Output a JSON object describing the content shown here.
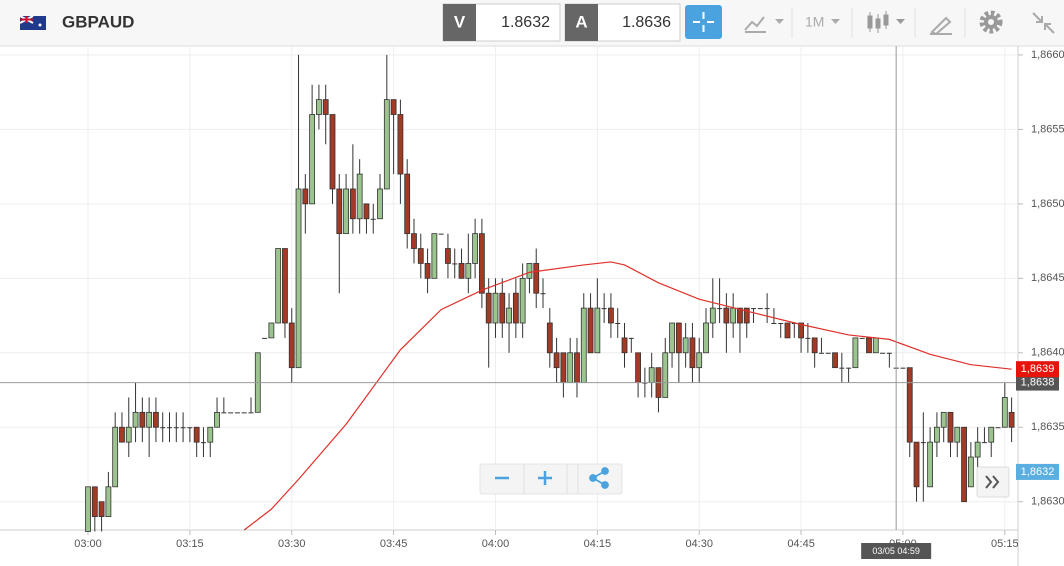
{
  "header": {
    "symbol": "GBPAUD",
    "bid_label": "V",
    "bid": 1.8632,
    "ask_label": "A",
    "ask": 1.8636,
    "timeframe": "1M"
  },
  "chart_data": {
    "type": "candlestick",
    "open": [
      1.8628,
      1.8631,
      1.863,
      1.8629,
      1.8631,
      1.8635,
      1.8634,
      1.8635,
      1.8636,
      1.8635,
      1.8636,
      1.8635,
      1.8635,
      1.8635,
      1.8635,
      1.8635,
      1.8635,
      1.8634,
      1.8634,
      1.8635,
      1.8636,
      1.8636,
      1.8636,
      1.8636,
      1.8636,
      1.8636,
      1.8641,
      1.8641,
      1.8642,
      1.8647,
      1.8642,
      1.8639,
      1.8651,
      1.865,
      1.8656,
      1.8657,
      1.8656,
      1.8651,
      1.8648,
      1.8651,
      1.8649,
      1.865,
      1.8649,
      1.8649,
      1.8651,
      1.8657,
      1.8656,
      1.8652,
      1.8648,
      1.8647,
      1.8646,
      1.8645,
      1.8648,
      1.8647,
      1.8646,
      1.8646,
      1.8645,
      1.8646,
      1.8648,
      1.8644,
      1.8642,
      1.8644,
      1.8642,
      1.8644,
      1.8642,
      1.8645,
      1.8646,
      1.8644,
      1.8642,
      1.864,
      1.864,
      1.8638,
      1.864,
      1.8638,
      1.8643,
      1.864,
      1.8643,
      1.8643,
      1.8642,
      1.8641,
      1.8641,
      1.864,
      1.8638,
      1.8638,
      1.8639,
      1.8637,
      1.864,
      1.8642,
      1.864,
      1.8641,
      1.8639,
      1.864,
      1.8642,
      1.8643,
      1.8643,
      1.8642,
      1.8643,
      1.8643,
      1.8643,
      1.8643,
      1.8643,
      1.8642,
      1.8642,
      1.8642,
      1.8642,
      1.8642,
      1.8641,
      1.8641,
      1.864,
      1.864,
      1.864,
      1.8639,
      1.8639,
      1.8639,
      1.8641,
      1.8641,
      1.864,
      1.864,
      1.864,
      1.8639,
      1.8639,
      1.8639,
      1.8634,
      1.8634,
      1.8631,
      1.8634,
      1.8635,
      1.8636,
      1.8634,
      1.8635,
      1.8631,
      1.8633,
      1.8634,
      1.8634,
      1.8635,
      1.8635,
      1.8636
    ],
    "high": [
      1.8631,
      1.8631,
      1.863,
      1.8632,
      1.8636,
      1.8636,
      1.8637,
      1.8638,
      1.8637,
      1.8637,
      1.8637,
      1.8636,
      1.8636,
      1.8636,
      1.8636,
      1.8635,
      1.8635,
      1.8635,
      1.8635,
      1.8637,
      1.8637,
      1.8636,
      1.8636,
      1.8636,
      1.8637,
      1.864,
      1.8641,
      1.8642,
      1.8647,
      1.8647,
      1.8643,
      1.866,
      1.8652,
      1.8658,
      1.8658,
      1.8658,
      1.8656,
      1.8652,
      1.8652,
      1.8654,
      1.8653,
      1.865,
      1.865,
      1.8652,
      1.866,
      1.8657,
      1.8657,
      1.8653,
      1.8649,
      1.8648,
      1.8647,
      1.8648,
      1.8648,
      1.8648,
      1.8647,
      1.8647,
      1.8648,
      1.8649,
      1.8649,
      1.8645,
      1.8645,
      1.8645,
      1.8644,
      1.8645,
      1.8646,
      1.8646,
      1.8647,
      1.8645,
      1.8643,
      1.8641,
      1.864,
      1.8641,
      1.8641,
      1.8644,
      1.8644,
      1.8645,
      1.8644,
      1.8644,
      1.8643,
      1.8642,
      1.8641,
      1.864,
      1.8639,
      1.864,
      1.8639,
      1.8641,
      1.8642,
      1.8642,
      1.8642,
      1.8642,
      1.8641,
      1.8643,
      1.8645,
      1.8645,
      1.8644,
      1.8644,
      1.8643,
      1.8643,
      1.8643,
      1.8643,
      1.8644,
      1.8643,
      1.8642,
      1.8642,
      1.8642,
      1.8642,
      1.8642,
      1.8641,
      1.8641,
      1.864,
      1.864,
      1.864,
      1.8639,
      1.8641,
      1.8641,
      1.8641,
      1.8641,
      1.864,
      1.864,
      1.8639,
      1.8639,
      1.8639,
      1.8634,
      1.8636,
      1.8635,
      1.8636,
      1.8636,
      1.8636,
      1.8635,
      1.8635,
      1.8634,
      1.8635,
      1.8635,
      1.8635,
      1.8635,
      1.8638,
      1.8637
    ],
    "low": [
      1.8628,
      1.8628,
      1.8628,
      1.8629,
      1.8631,
      1.8634,
      1.8633,
      1.8634,
      1.8634,
      1.8633,
      1.8634,
      1.8634,
      1.8634,
      1.8634,
      1.8634,
      1.8634,
      1.8633,
      1.8633,
      1.8633,
      1.8635,
      1.8636,
      1.8636,
      1.8636,
      1.8636,
      1.8636,
      1.8636,
      1.8641,
      1.8641,
      1.8642,
      1.8641,
      1.8638,
      1.8639,
      1.8648,
      1.865,
      1.8655,
      1.8654,
      1.865,
      1.8644,
      1.8648,
      1.8648,
      1.8648,
      1.8648,
      1.8648,
      1.8649,
      1.8651,
      1.8652,
      1.865,
      1.8647,
      1.8646,
      1.8645,
      1.8644,
      1.8645,
      1.8648,
      1.8645,
      1.8645,
      1.8645,
      1.8644,
      1.8645,
      1.8643,
      1.8639,
      1.8641,
      1.8641,
      1.864,
      1.8641,
      1.8641,
      1.8644,
      1.8643,
      1.8643,
      1.8639,
      1.8638,
      1.8637,
      1.8638,
      1.8637,
      1.8638,
      1.864,
      1.864,
      1.8642,
      1.8641,
      1.8641,
      1.8639,
      1.864,
      1.8637,
      1.8637,
      1.8637,
      1.8636,
      1.8637,
      1.8639,
      1.8638,
      1.8639,
      1.8638,
      1.8638,
      1.864,
      1.8641,
      1.8642,
      1.864,
      1.8641,
      1.864,
      1.8641,
      1.8642,
      1.8643,
      1.8642,
      1.8642,
      1.8641,
      1.8641,
      1.8641,
      1.864,
      1.864,
      1.8639,
      1.864,
      1.864,
      1.8639,
      1.8638,
      1.8638,
      1.8639,
      1.8641,
      1.864,
      1.864,
      1.864,
      1.8639,
      1.8639,
      1.8639,
      1.8633,
      1.863,
      1.863,
      1.8631,
      1.8633,
      1.8634,
      1.8633,
      1.8633,
      1.863,
      1.8631,
      1.8632,
      1.8634,
      1.8633,
      1.8635,
      1.8635,
      1.8634
    ],
    "close": [
      1.8631,
      1.8629,
      1.8629,
      1.8631,
      1.8635,
      1.8634,
      1.8635,
      1.8636,
      1.8635,
      1.8636,
      1.8635,
      1.8635,
      1.8635,
      1.8635,
      1.8635,
      1.8635,
      1.8634,
      1.8634,
      1.8635,
      1.8636,
      1.8636,
      1.8636,
      1.8636,
      1.8636,
      1.8636,
      1.864,
      1.8641,
      1.8642,
      1.8647,
      1.8642,
      1.8639,
      1.8651,
      1.865,
      1.8656,
      1.8657,
      1.8656,
      1.8651,
      1.8648,
      1.8651,
      1.8649,
      1.8652,
      1.8649,
      1.8649,
      1.8651,
      1.8657,
      1.8656,
      1.8652,
      1.8648,
      1.8647,
      1.8646,
      1.8645,
      1.8648,
      1.8648,
      1.8646,
      1.8646,
      1.8645,
      1.8646,
      1.8648,
      1.8644,
      1.8642,
      1.8644,
      1.8642,
      1.8643,
      1.8642,
      1.8645,
      1.8646,
      1.8644,
      1.8644,
      1.864,
      1.8639,
      1.8638,
      1.864,
      1.8638,
      1.8643,
      1.864,
      1.8643,
      1.8643,
      1.8642,
      1.8642,
      1.864,
      1.8641,
      1.8638,
      1.8638,
      1.8639,
      1.8637,
      1.864,
      1.8642,
      1.864,
      1.8641,
      1.8639,
      1.864,
      1.8642,
      1.8643,
      1.8643,
      1.8642,
      1.8643,
      1.8642,
      1.8642,
      1.8643,
      1.8643,
      1.8643,
      1.8642,
      1.8642,
      1.8641,
      1.8642,
      1.8641,
      1.8641,
      1.864,
      1.864,
      1.864,
      1.8639,
      1.8639,
      1.8639,
      1.8641,
      1.8641,
      1.864,
      1.8641,
      1.864,
      1.864,
      1.8639,
      1.8639,
      1.8634,
      1.8631,
      1.8634,
      1.8634,
      1.8635,
      1.8636,
      1.8634,
      1.8635,
      1.863,
      1.8633,
      1.8634,
      1.8634,
      1.8635,
      1.8635,
      1.8637,
      1.8635
    ],
    "xlim": [
      -12.96,
      136.5
    ],
    "xticks": [
      {
        "value": 0,
        "label": "03:00"
      },
      {
        "value": 15,
        "label": "03:15"
      },
      {
        "value": 30,
        "label": "03:30"
      },
      {
        "value": 45,
        "label": "03:45"
      },
      {
        "value": 60,
        "label": "04:00"
      },
      {
        "value": 75,
        "label": "04:15"
      },
      {
        "value": 90,
        "label": "04:30"
      },
      {
        "value": 105,
        "label": "04:45"
      },
      {
        "value": 120,
        "label": "05:00"
      },
      {
        "value": 135,
        "label": "05:15"
      }
    ],
    "ylim": [
      1.86281,
      1.86606
    ],
    "yticks": [
      {
        "value": 1.863,
        "label": "1,8630"
      },
      {
        "value": 1.8635,
        "label": "1,8635"
      },
      {
        "value": 1.864,
        "label": "1,8640"
      },
      {
        "value": 1.8645,
        "label": "1,8645"
      },
      {
        "value": 1.865,
        "label": "1,8650"
      },
      {
        "value": 1.8655,
        "label": "1,8655"
      },
      {
        "value": 1.866,
        "label": "1,8660"
      }
    ],
    "grid": true,
    "up_color": "#9cc48e",
    "down_color": "#a23a25",
    "moving_average": {
      "color": "#e0302a",
      "x": [
        23,
        27,
        31,
        38,
        46,
        52,
        58,
        65,
        73,
        77,
        79,
        84,
        90,
        97,
        105,
        112,
        118,
        124,
        130,
        136
      ],
      "values": [
        1.86281,
        1.86295,
        1.86315,
        1.86352,
        1.86402,
        1.86429,
        1.86442,
        1.86454,
        1.86459,
        1.86461,
        1.86459,
        1.86447,
        1.86436,
        1.86428,
        1.86419,
        1.86412,
        1.86409,
        1.86399,
        1.86392,
        1.86389
      ]
    },
    "price_line": {
      "value": 1.8638,
      "label": "1,8638",
      "color": "#555555"
    },
    "tags": [
      {
        "value": 1.86389,
        "label": "1,8639",
        "color": "#e8140c"
      },
      {
        "value": 1.8632,
        "label": "1,8632",
        "color": "#5aaee0"
      }
    ],
    "crosshair": {
      "x": 119,
      "label": "03/05 04:59"
    }
  }
}
